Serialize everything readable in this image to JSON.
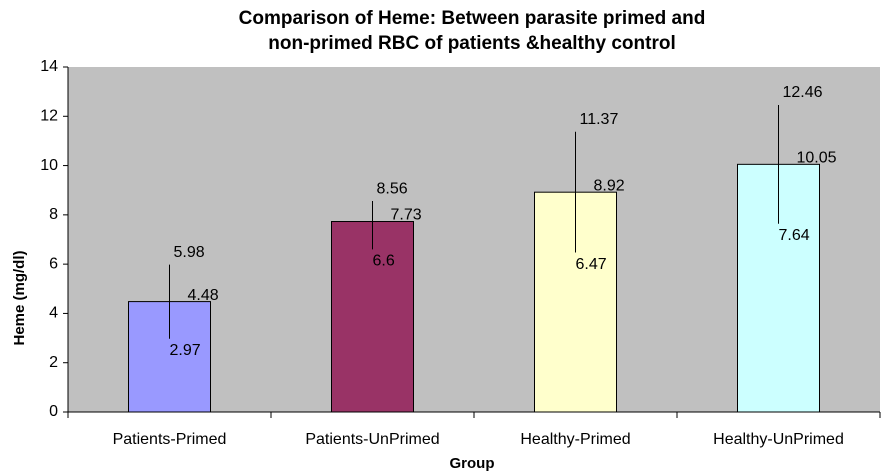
{
  "chart_data": {
    "type": "bar",
    "title": [
      "Comparison of Heme: Between parasite primed and",
      "non-primed RBC of patients &healthy control"
    ],
    "x_label": "Group",
    "y_label": "Heme (mg/dl)",
    "categories": [
      "Patients-Primed",
      "Patients-UnPrimed",
      "Healthy-Primed",
      "Healthy-UnPrimed"
    ],
    "values": [
      4.48,
      7.73,
      8.92,
      10.05
    ],
    "upper": [
      5.98,
      8.56,
      11.37,
      12.46
    ],
    "lower": [
      2.97,
      6.6,
      6.47,
      7.64
    ],
    "colors": [
      "#9999ff",
      "#993366",
      "#ffffcc",
      "#ccffff"
    ],
    "ylim": [
      0,
      14
    ],
    "yticks": [
      0,
      2,
      4,
      6,
      8,
      10,
      12,
      14
    ],
    "plot_background": "#c0c0c0"
  }
}
